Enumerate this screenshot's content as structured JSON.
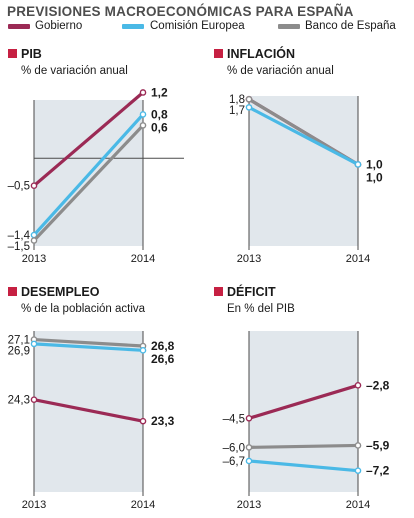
{
  "title": "PREVISIONES MACROECONÓMICAS PARA ESPAÑA",
  "colors": {
    "Gobierno": "#9b2a55",
    "Comisión Europea": "#4ab9e6",
    "Banco de España": "#8c8c8c",
    "shade": "#e1e7ec",
    "header_square": "#c62042",
    "text": "#1a1a1a"
  },
  "legend": [
    {
      "name": "Gobierno",
      "color": "#9b2a55"
    },
    {
      "name": "Comisión Europea",
      "color": "#4ab9e6"
    },
    {
      "name": "Banco de España",
      "color": "#8c8c8c"
    }
  ],
  "chart_data": [
    {
      "type": "line",
      "title": "PIB",
      "subtitle": "% de variación anual",
      "x": [
        "2013",
        "2014"
      ],
      "ylim": [
        -1.6,
        1.3
      ],
      "zero_line": true,
      "series": [
        {
          "name": "Gobierno",
          "values": [
            -0.5,
            1.2
          ]
        },
        {
          "name": "Comisión Europea",
          "values": [
            -1.4,
            0.8
          ]
        },
        {
          "name": "Banco de España",
          "values": [
            -1.5,
            0.6
          ]
        }
      ],
      "left_labels": [
        {
          "text": "–0,5",
          "value": -0.5
        },
        {
          "text": "–1,4",
          "value": -1.4
        },
        {
          "text": "–1,5",
          "value": -1.5
        }
      ],
      "right_labels": [
        {
          "text": "1,2",
          "value": 1.2
        },
        {
          "text": "0,8",
          "value": 0.8
        },
        {
          "text": "0,6",
          "value": 0.6
        }
      ]
    },
    {
      "type": "line",
      "title": "INFLACIÓN",
      "subtitle": "% de variación anual",
      "x": [
        "2013",
        "2014"
      ],
      "ylim": [
        0,
        1.95
      ],
      "zero_line": false,
      "series": [
        {
          "name": "Gobierno",
          "values": [
            1.8,
            1.0
          ]
        },
        {
          "name": "Banco de España",
          "values": [
            1.8,
            1.0
          ]
        },
        {
          "name": "Comisión Europea",
          "values": [
            1.7,
            1.0
          ]
        }
      ],
      "left_labels": [
        {
          "text": "1,8",
          "value": 1.8
        },
        {
          "text": "1,7",
          "value": 1.7
        }
      ],
      "right_labels": [
        {
          "text": "1,0",
          "value": 1.0
        },
        {
          "text": "1,0",
          "value": 1.0
        }
      ]
    },
    {
      "type": "line",
      "title": "DESEMPLEO",
      "subtitle": "% de la población activa",
      "x": [
        "2013",
        "2014"
      ],
      "ylim": [
        20,
        27.5
      ],
      "zero_line": false,
      "series": [
        {
          "name": "Gobierno",
          "values": [
            24.3,
            23.3
          ]
        },
        {
          "name": "Banco de España",
          "values": [
            27.1,
            26.8
          ]
        },
        {
          "name": "Comisión Europea",
          "values": [
            26.9,
            26.6
          ]
        }
      ],
      "left_labels": [
        {
          "text": "27,1",
          "value": 27.1
        },
        {
          "text": "26,9",
          "value": 26.9
        },
        {
          "text": "24,3",
          "value": 24.3
        }
      ],
      "right_labels": [
        {
          "text": "26,8",
          "value": 26.8
        },
        {
          "text": "26,6",
          "value": 26.6
        },
        {
          "text": "23,3",
          "value": 23.3
        }
      ]
    },
    {
      "type": "line",
      "title": "DÉFICIT",
      "subtitle": "En % del PIB",
      "x": [
        "2013",
        "2014"
      ],
      "ylim": [
        -8.3,
        0
      ],
      "zero_line": false,
      "series": [
        {
          "name": "Gobierno",
          "values": [
            -4.5,
            -2.8
          ]
        },
        {
          "name": "Banco de España",
          "values": [
            -6.0,
            -5.9
          ]
        },
        {
          "name": "Comisión Europea",
          "values": [
            -6.7,
            -7.2
          ]
        }
      ],
      "left_labels": [
        {
          "text": "–4,5",
          "value": -4.5
        },
        {
          "text": "–6,0",
          "value": -6.0
        },
        {
          "text": "–6,7",
          "value": -6.7
        }
      ],
      "right_labels": [
        {
          "text": "–2,8",
          "value": -2.8
        },
        {
          "text": "–5,9",
          "value": -5.9
        },
        {
          "text": "–7,2",
          "value": -7.2
        }
      ]
    }
  ]
}
